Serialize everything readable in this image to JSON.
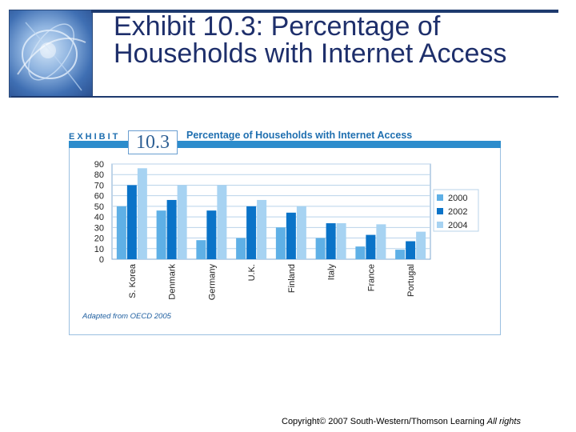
{
  "slide": {
    "title": "Exhibit 10.3: Percentage of Households with Internet Access",
    "copyright": "Copyright© 2007 South-Western/Thomson Learning",
    "rights": "All rights"
  },
  "exhibit": {
    "word": "EXHIBIT",
    "number": "10.3",
    "title": "Percentage of Households with Internet Access",
    "source": "Adapted from OECD 2005"
  },
  "colors": {
    "accent": "#2c8ccc",
    "title_text": "#1e2f6b",
    "s2000": "#5fb0e6",
    "s2002": "#0a73c8",
    "s2004": "#a7d3f2"
  },
  "chart_data": {
    "type": "bar",
    "title": "Percentage of Households with Internet Access",
    "categories": [
      "S. Korea",
      "Denmark",
      "Germany",
      "U.K.",
      "Finland",
      "Italy",
      "France",
      "Portugal"
    ],
    "series": [
      {
        "name": "2000",
        "values": [
          50,
          46,
          18,
          20,
          30,
          20,
          12,
          9
        ]
      },
      {
        "name": "2002",
        "values": [
          70,
          56,
          46,
          50,
          44,
          34,
          23,
          17
        ]
      },
      {
        "name": "2004",
        "values": [
          86,
          70,
          70,
          56,
          50,
          34,
          33,
          26
        ]
      }
    ],
    "yticks": [
      "0",
      "10",
      "20",
      "30",
      "40",
      "50",
      "60",
      "70",
      "80",
      "90"
    ],
    "ylim": [
      0,
      90
    ],
    "grid": true,
    "legend": "right"
  }
}
